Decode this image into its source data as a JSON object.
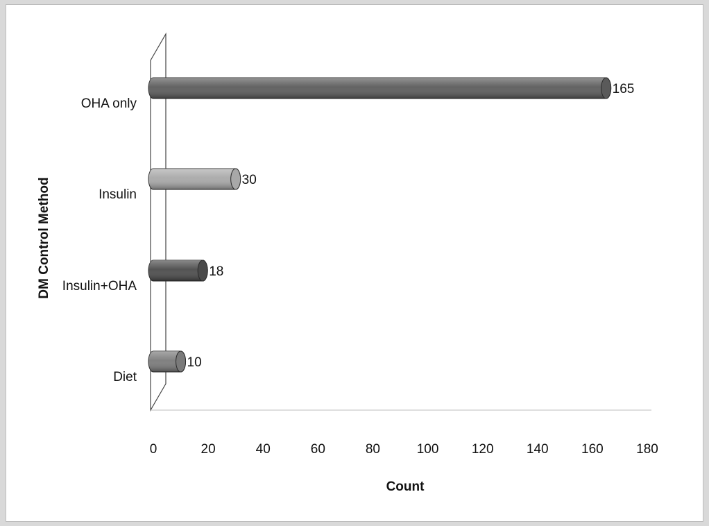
{
  "chart_data": {
    "type": "bar",
    "orientation": "horizontal",
    "title": "",
    "xlabel": "Count",
    "ylabel": "DM Control Method",
    "categories": [
      "OHA only",
      "Insulin",
      "Insulin+OHA",
      "Diet"
    ],
    "values": [
      165,
      30,
      18,
      10
    ],
    "xlim": [
      0,
      180
    ],
    "xticks": [
      0,
      20,
      40,
      60,
      80,
      100,
      120,
      140,
      160,
      180
    ],
    "grid": false,
    "legend": "none",
    "bar_colors": [
      "#5a5a5a",
      "#a8a8a8",
      "#4a4a4a",
      "#7a7a7a"
    ]
  }
}
